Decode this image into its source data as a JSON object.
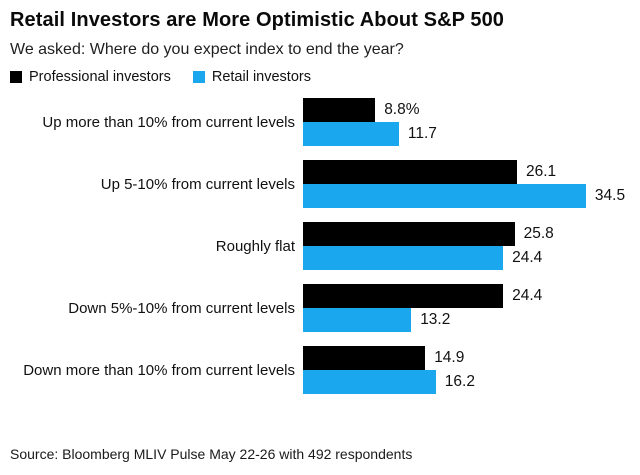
{
  "page": {
    "background": "#ffffff"
  },
  "header": {
    "title": "Retail Investors are More Optimistic About S&P 500",
    "subtitle": "We asked: Where do you expect index to end the year?"
  },
  "legend": [
    {
      "label": "Professional investors",
      "color": "#000000"
    },
    {
      "label": "Retail investors",
      "color": "#1AA7EE"
    }
  ],
  "chart_data": {
    "type": "bar",
    "orientation": "horizontal",
    "title": "Retail Investors are More Optimistic About S&P 500",
    "subtitle": "We asked: Where do you expect index to end the year?",
    "unit": "percent of respondents",
    "categories": [
      "Up more than 10% from current levels",
      "Up 5-10% from current levels",
      "Roughly flat",
      "Down 5%-10% from current levels",
      "Down more than 10% from current levels"
    ],
    "series": [
      {
        "name": "Professional investors",
        "key": "professional",
        "color": "#000000",
        "values": [
          8.8,
          26.1,
          25.8,
          24.4,
          14.9
        ],
        "labels": [
          "8.8%",
          "26.1",
          "25.8",
          "24.4",
          "14.9"
        ]
      },
      {
        "name": "Retail investors",
        "key": "retail",
        "color": "#1AA7EE",
        "values": [
          11.7,
          34.5,
          24.4,
          13.2,
          16.2
        ],
        "labels": [
          "11.7",
          "34.5",
          "24.4",
          "13.2",
          "16.2"
        ]
      }
    ],
    "xlim": [
      0,
      36
    ],
    "grid": false,
    "legend_position": "top-left",
    "value_labels": "end-of-bar"
  },
  "footer": {
    "source": "Source: Bloomberg MLIV Pulse May 22-26 with 492 respondents"
  }
}
